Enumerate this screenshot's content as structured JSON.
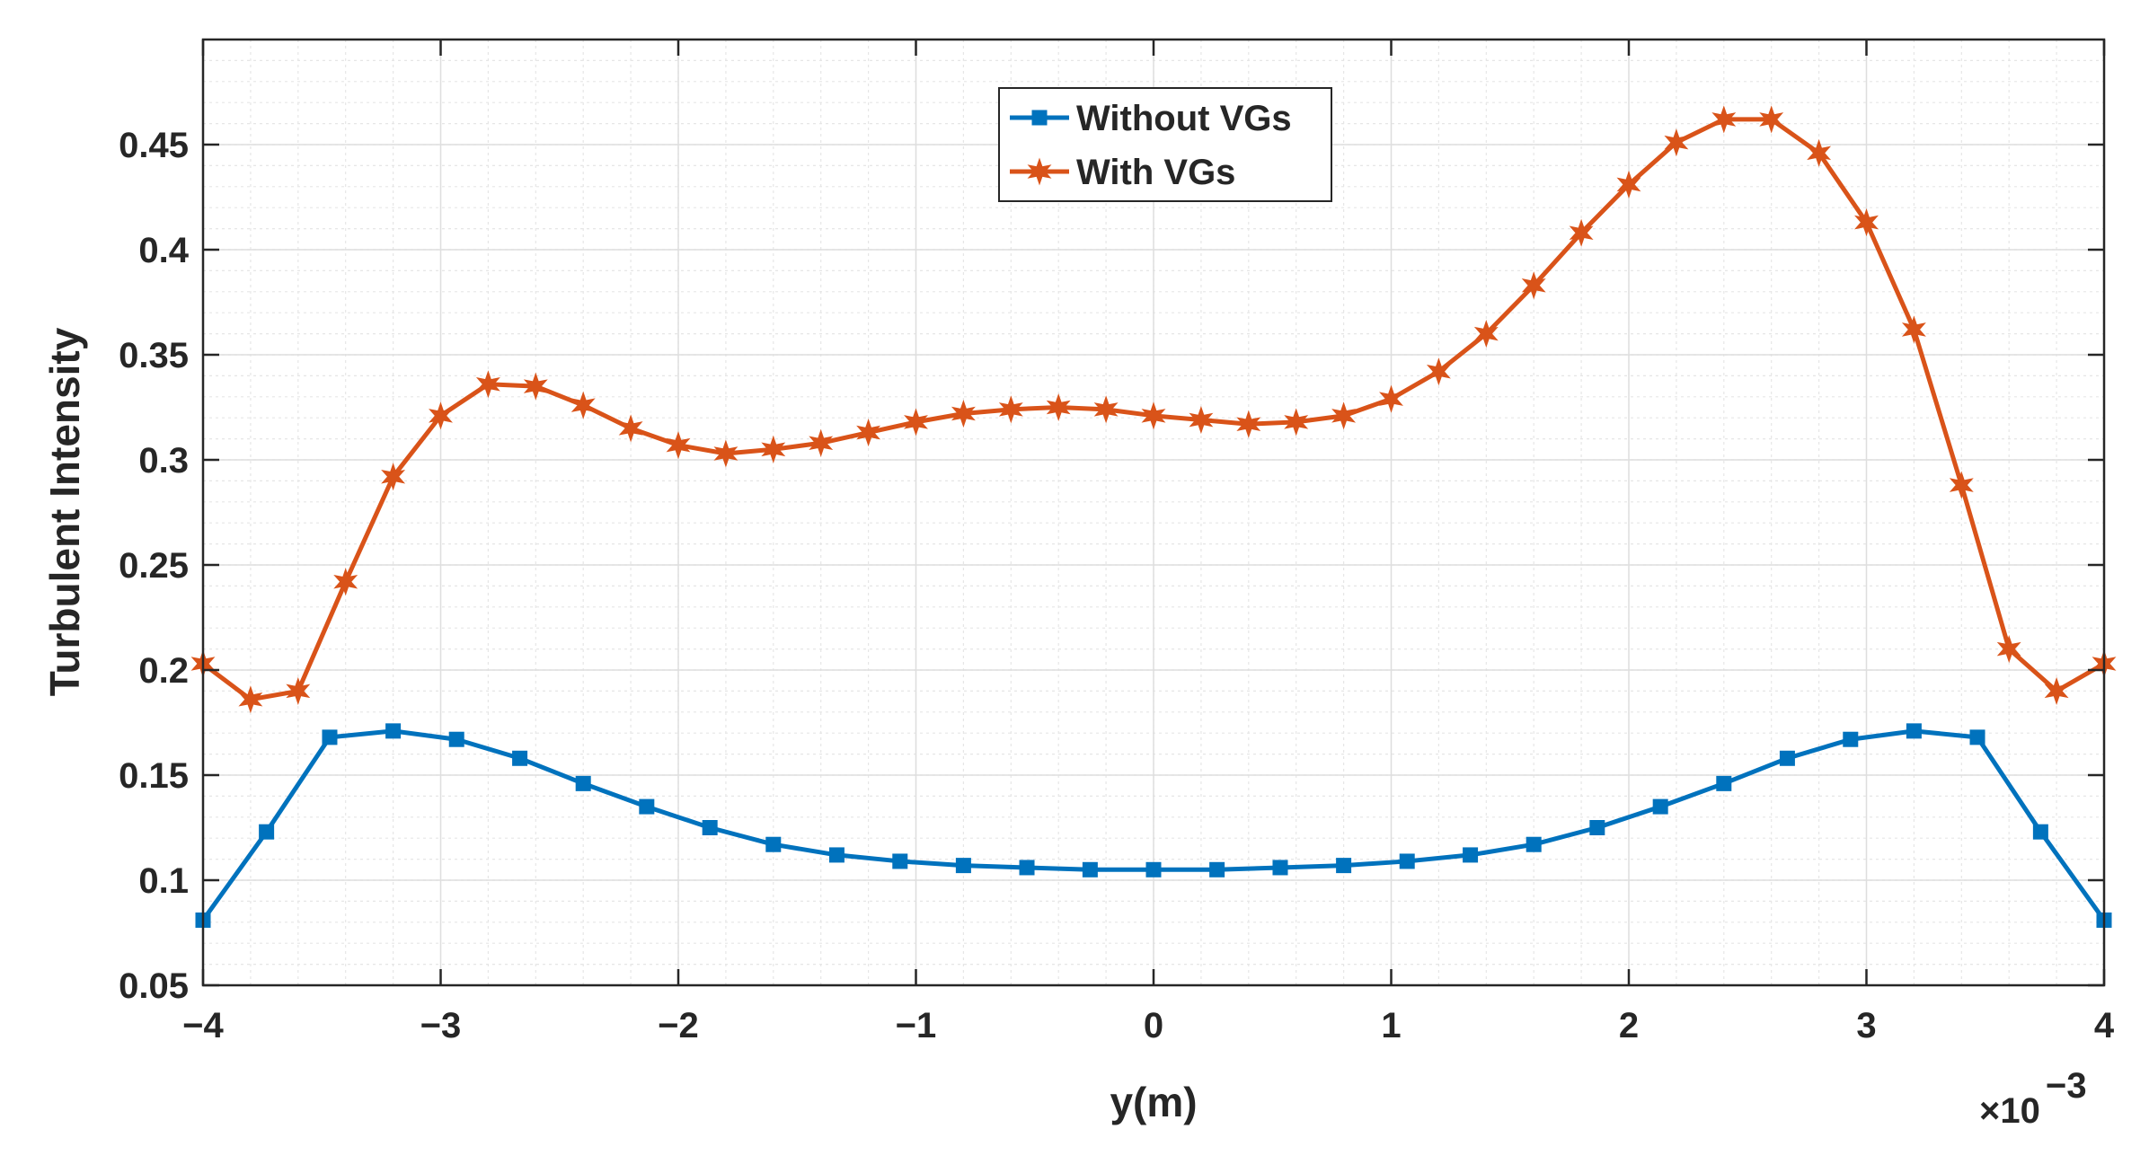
{
  "chart_data": {
    "type": "line",
    "title": "",
    "xlabel": "y(m)",
    "ylabel": "Turbulent Intensity",
    "x_exponent_label": "×10",
    "x_exponent_power": "−3",
    "xlim": [
      -4,
      4
    ],
    "ylim": [
      0.05,
      0.5
    ],
    "x_ticks": [
      -4,
      -3,
      -2,
      -1,
      0,
      1,
      2,
      3,
      4
    ],
    "x_tick_labels": [
      "−4",
      "−3",
      "−2",
      "−1",
      "0",
      "1",
      "2",
      "3",
      "4"
    ],
    "y_ticks": [
      0.05,
      0.1,
      0.15,
      0.2,
      0.25,
      0.3,
      0.35,
      0.4,
      0.45
    ],
    "y_tick_labels": [
      "0.05",
      "0.1",
      "0.15",
      "0.2",
      "0.25",
      "0.3",
      "0.35",
      "0.4",
      "0.45"
    ],
    "grid": true,
    "legend_position": "top-center",
    "series": [
      {
        "name": "Without VGs",
        "color": "#0072BD",
        "marker": "square",
        "x": [
          -4.0,
          -3.733,
          -3.467,
          -3.2,
          -2.933,
          -2.667,
          -2.4,
          -2.133,
          -1.867,
          -1.6,
          -1.333,
          -1.067,
          -0.8,
          -0.533,
          -0.267,
          0.0,
          0.267,
          0.533,
          0.8,
          1.067,
          1.333,
          1.6,
          1.867,
          2.133,
          2.4,
          2.667,
          2.933,
          3.2,
          3.467,
          3.733,
          4.0
        ],
        "y": [
          0.081,
          0.123,
          0.168,
          0.171,
          0.167,
          0.158,
          0.146,
          0.135,
          0.125,
          0.117,
          0.112,
          0.109,
          0.107,
          0.106,
          0.105,
          0.105,
          0.105,
          0.106,
          0.107,
          0.109,
          0.112,
          0.117,
          0.125,
          0.135,
          0.146,
          0.158,
          0.167,
          0.171,
          0.168,
          0.123,
          0.081
        ]
      },
      {
        "name": "With VGs",
        "color": "#D95319",
        "marker": "star",
        "x": [
          -4.0,
          -3.8,
          -3.6,
          -3.4,
          -3.2,
          -3.0,
          -2.8,
          -2.6,
          -2.4,
          -2.2,
          -2.0,
          -1.8,
          -1.6,
          -1.4,
          -1.2,
          -1.0,
          -0.8,
          -0.6,
          -0.4,
          -0.2,
          0.0,
          0.2,
          0.4,
          0.6,
          0.8,
          1.0,
          1.2,
          1.4,
          1.6,
          1.8,
          2.0,
          2.2,
          2.4,
          2.6,
          2.8,
          3.0,
          3.2,
          3.4,
          3.6,
          3.8,
          4.0
        ],
        "y": [
          0.203,
          0.186,
          0.19,
          0.242,
          0.292,
          0.321,
          0.336,
          0.335,
          0.326,
          0.315,
          0.307,
          0.303,
          0.305,
          0.308,
          0.313,
          0.318,
          0.322,
          0.324,
          0.325,
          0.324,
          0.321,
          0.319,
          0.317,
          0.318,
          0.321,
          0.329,
          0.342,
          0.36,
          0.383,
          0.408,
          0.431,
          0.451,
          0.462,
          0.462,
          0.446,
          0.413,
          0.362,
          0.288,
          0.21,
          0.19,
          0.203
        ]
      }
    ]
  }
}
